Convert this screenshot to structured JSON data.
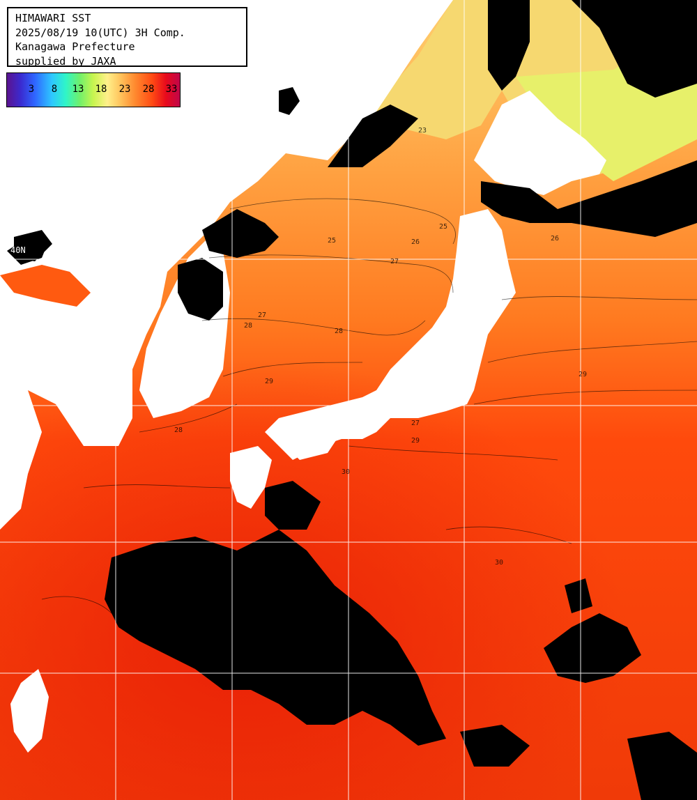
{
  "header": {
    "line1": "HIMAWARI SST",
    "line2": "2025/08/19 10(UTC) 3H Comp.",
    "line3": "Kanagawa Prefecture",
    "line4": "supplied by JAXA"
  },
  "colorbar": {
    "ticks": [
      "3",
      "8",
      "13",
      "18",
      "23",
      "28",
      "33"
    ]
  },
  "lat_label": "40N",
  "contour_labels": [
    "23",
    "25",
    "25",
    "26",
    "27",
    "27",
    "28",
    "28",
    "29",
    "29",
    "29",
    "30",
    "30",
    "28",
    "27",
    "26"
  ],
  "colors": {
    "land": "#ffffff",
    "cloud": "#000000",
    "sea_warm": "#ff5a10",
    "sea_hot": "#f02a08",
    "sea_mild": "#ff9a3c",
    "sea_cool": "#ffc060",
    "sea_cold": "#e8f070",
    "grid": "#ffffff"
  }
}
